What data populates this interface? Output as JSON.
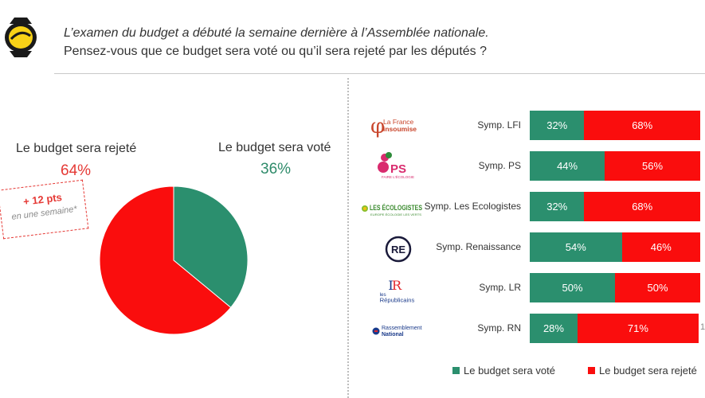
{
  "question": {
    "line1": "L’examen du budget a débuté la semaine dernière à l’Assemblée nationale.",
    "line2": "Pensez-vous que ce budget sera voté ou qu’il sera rejeté par les députés ?"
  },
  "colors": {
    "vote": "#2b8f6e",
    "reject": "#fa0d0d",
    "accent_text_vote": "#2e8b6a",
    "accent_text_reject": "#e53935"
  },
  "pie": {
    "rejected_label": "Le budget sera rejeté",
    "rejected_pct": "64%",
    "voted_label": "Le budget sera voté",
    "voted_pct": "36%",
    "change_value": "+ 12 pts",
    "change_note": "en une semaine*"
  },
  "logos": {
    "lfi_line1": "La France",
    "lfi_line2": "insoumise",
    "ps_text": "PS",
    "ps_sub": "FAIRE L’ÉCOLOGIE",
    "ecolo_text": "LES ÉCOLOGISTES",
    "ecolo_sub": "EUROPE ÉCOLOGIE LES VERTS",
    "re_text": "RE",
    "lr_line1": "les",
    "lr_line2": "Républicains",
    "rn_line1": "Rassemblement",
    "rn_line2": "National"
  },
  "chart_data": [
    {
      "type": "pie",
      "title": "Pensez-vous que ce budget sera voté ou qu’il sera rejeté par les députés ?",
      "categories": [
        "Le budget sera voté",
        "Le budget sera rejeté"
      ],
      "values": [
        36,
        64
      ],
      "annotations": [
        "+ 12 pts en une semaine*"
      ]
    },
    {
      "type": "bar",
      "orientation": "horizontal-stacked",
      "categories": [
        "Symp. LFI",
        "Symp. PS",
        "Symp. Les Ecologistes",
        "Symp. Renaissance",
        "Symp. LR",
        "Symp. RN"
      ],
      "series": [
        {
          "name": "Le budget sera voté",
          "values": [
            32,
            44,
            32,
            54,
            50,
            28
          ],
          "labels": [
            "32%",
            "44%",
            "32%",
            "54%",
            "50%",
            "28%"
          ]
        },
        {
          "name": "Le budget sera rejeté",
          "values": [
            68,
            56,
            68,
            46,
            50,
            71
          ],
          "labels": [
            "68%",
            "56%",
            "68%",
            "46%",
            "50%",
            "71%"
          ]
        }
      ],
      "extra_labels": {
        "Symp. RN": "1"
      },
      "legend": "bottom",
      "xlim": [
        0,
        100
      ]
    }
  ]
}
